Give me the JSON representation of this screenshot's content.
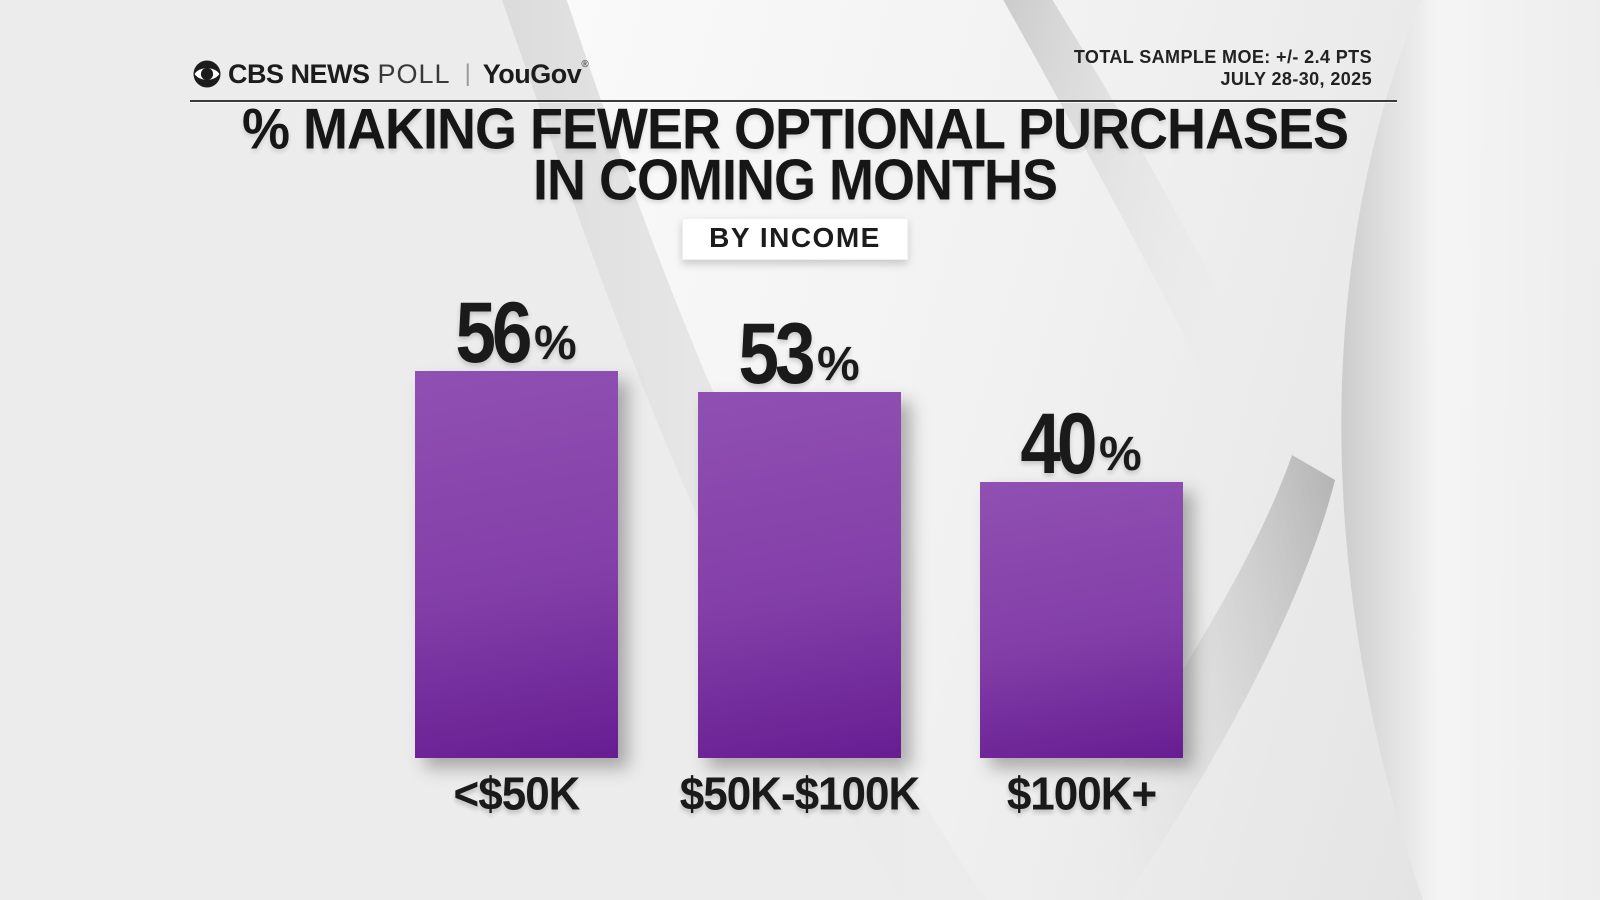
{
  "header": {
    "brand": {
      "cbs": "CBS NEWS",
      "poll": "POLL",
      "partner": "YouGov",
      "reg_mark": "®"
    },
    "moe_line": "TOTAL SAMPLE MOE: +/- 2.4 PTS",
    "date_line": "JULY 28-30, 2025"
  },
  "title": {
    "line1": "% MAKING FEWER OPTIONAL PURCHASES",
    "line2": "IN COMING MONTHS"
  },
  "badge": {
    "label": "BY INCOME"
  },
  "chart_data": {
    "type": "bar",
    "title": "% MAKING FEWER OPTIONAL PURCHASES IN COMING MONTHS",
    "subtitle": "BY INCOME",
    "categories": [
      "<$50K",
      "$50K-$100K",
      "$100K+"
    ],
    "values": [
      56,
      53,
      40
    ],
    "value_suffix": "%",
    "ylim": [
      0,
      60
    ],
    "grid": false,
    "legend": "none",
    "bar_color_top": "#9050b2",
    "bar_color_bottom": "#671d92",
    "value_label_color": "#1a1a1a",
    "background_color": "#ececec",
    "source_note": "TOTAL SAMPLE MOE: +/- 2.4 PTS, JULY 28-30, 2025"
  }
}
